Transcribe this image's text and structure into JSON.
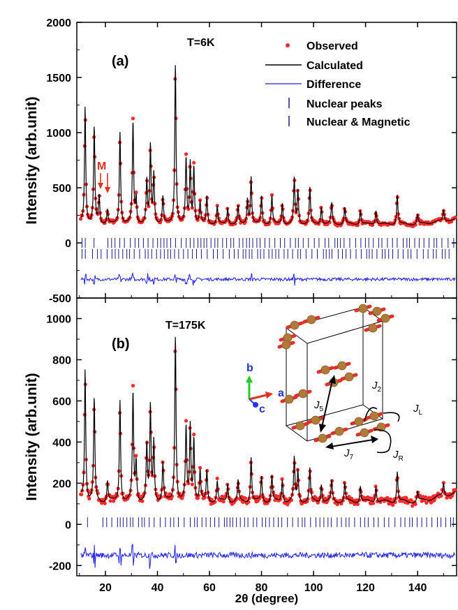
{
  "figure": {
    "xlabel": "2θ (degree)",
    "ylabel_a": "Intensity (arb.unit)",
    "ylabel_b": "Intensity (arb.unit)",
    "colors": {
      "observed": "#ff2a2a",
      "calculated": "#000000",
      "difference": "#1f1fe0",
      "ticks": "#1a1a80",
      "annotation": "#e03020"
    }
  },
  "legend": {
    "observed": "Observed",
    "calculated": "Calculated",
    "difference": "Difference",
    "nuclear": "Nuclear peaks",
    "nuclear_magnetic": "Nuclear & Magnetic"
  },
  "panel_a": {
    "label": "(a)",
    "temp": "T=6K",
    "marker": "M"
  },
  "panel_b": {
    "label": "(b)",
    "temp": "T=175K"
  },
  "inset": {
    "axis_b": "b",
    "axis_a": "a",
    "axis_c": "c",
    "j5": "J",
    "j5_sub": "5",
    "j2": "J",
    "j2_sub": "2",
    "jl": "J",
    "jl_sub": "L",
    "jr": "J",
    "jr_sub": "R",
    "j7": "J",
    "j7_sub": "7"
  },
  "chart_data": [
    {
      "type": "line",
      "panel": "a",
      "title": "",
      "xlabel": "2θ (degree)",
      "ylabel": "Intensity (arb.unit)",
      "xlim": [
        9,
        155
      ],
      "ylim": [
        -500,
        2000
      ],
      "xticks": [
        20,
        40,
        60,
        80,
        100,
        120,
        140
      ],
      "yticks": [
        -500,
        0,
        500,
        1000,
        1500,
        2000
      ],
      "background": 170,
      "difference_offset": -330,
      "tick_rows_y": [
        0,
        -100
      ],
      "peaks": [
        {
          "x": 12.2,
          "y": 1240
        },
        {
          "x": 15.7,
          "y": 1050
        },
        {
          "x": 17.6,
          "y": 420
        },
        {
          "x": 20.8,
          "y": 300
        },
        {
          "x": 25.6,
          "y": 1010
        },
        {
          "x": 30.6,
          "y": 1100
        },
        {
          "x": 31.8,
          "y": 400
        },
        {
          "x": 35.9,
          "y": 560
        },
        {
          "x": 37.3,
          "y": 880
        },
        {
          "x": 38.6,
          "y": 620
        },
        {
          "x": 42.1,
          "y": 420
        },
        {
          "x": 46.9,
          "y": 1640
        },
        {
          "x": 51.0,
          "y": 760
        },
        {
          "x": 52.6,
          "y": 720
        },
        {
          "x": 54.0,
          "y": 690
        },
        {
          "x": 56.4,
          "y": 370
        },
        {
          "x": 59.0,
          "y": 420
        },
        {
          "x": 63.0,
          "y": 330
        },
        {
          "x": 67.0,
          "y": 320
        },
        {
          "x": 71.0,
          "y": 330
        },
        {
          "x": 74.6,
          "y": 400
        },
        {
          "x": 76.0,
          "y": 600
        },
        {
          "x": 80.0,
          "y": 420
        },
        {
          "x": 84.0,
          "y": 430
        },
        {
          "x": 88.0,
          "y": 360
        },
        {
          "x": 92.6,
          "y": 580
        },
        {
          "x": 94.0,
          "y": 470
        },
        {
          "x": 98.6,
          "y": 500
        },
        {
          "x": 103.0,
          "y": 330
        },
        {
          "x": 107.0,
          "y": 360
        },
        {
          "x": 112.0,
          "y": 320
        },
        {
          "x": 118.0,
          "y": 300
        },
        {
          "x": 124.0,
          "y": 300
        },
        {
          "x": 132.2,
          "y": 440
        },
        {
          "x": 140.0,
          "y": 260
        },
        {
          "x": 150.0,
          "y": 270
        }
      ],
      "tick_start": 11,
      "tick_end": 154,
      "tick_step": 1.6
    },
    {
      "type": "line",
      "panel": "b",
      "title": "",
      "xlabel": "2θ (degree)",
      "ylabel": "Intensity (arb.unit)",
      "xlim": [
        9,
        155
      ],
      "ylim": [
        -250,
        1100
      ],
      "xticks": [
        20,
        40,
        60,
        80,
        100,
        120,
        140
      ],
      "yticks": [
        -200,
        0,
        200,
        400,
        600,
        800,
        1000
      ],
      "background": 110,
      "difference_offset": -150,
      "tick_rows_y": [
        10
      ],
      "peaks": [
        {
          "x": 12.2,
          "y": 760
        },
        {
          "x": 15.7,
          "y": 610
        },
        {
          "x": 20.8,
          "y": 210
        },
        {
          "x": 25.6,
          "y": 610
        },
        {
          "x": 30.6,
          "y": 640
        },
        {
          "x": 31.8,
          "y": 300
        },
        {
          "x": 35.9,
          "y": 380
        },
        {
          "x": 37.3,
          "y": 570
        },
        {
          "x": 38.6,
          "y": 400
        },
        {
          "x": 42.1,
          "y": 300
        },
        {
          "x": 46.9,
          "y": 930
        },
        {
          "x": 51.0,
          "y": 470
        },
        {
          "x": 52.6,
          "y": 480
        },
        {
          "x": 54.0,
          "y": 420
        },
        {
          "x": 56.4,
          "y": 260
        },
        {
          "x": 59.0,
          "y": 260
        },
        {
          "x": 63.0,
          "y": 210
        },
        {
          "x": 67.0,
          "y": 200
        },
        {
          "x": 71.0,
          "y": 210
        },
        {
          "x": 76.0,
          "y": 330
        },
        {
          "x": 80.0,
          "y": 230
        },
        {
          "x": 84.0,
          "y": 240
        },
        {
          "x": 88.0,
          "y": 220
        },
        {
          "x": 92.6,
          "y": 320
        },
        {
          "x": 94.0,
          "y": 260
        },
        {
          "x": 98.6,
          "y": 270
        },
        {
          "x": 103.0,
          "y": 200
        },
        {
          "x": 107.0,
          "y": 210
        },
        {
          "x": 112.0,
          "y": 200
        },
        {
          "x": 118.0,
          "y": 190
        },
        {
          "x": 124.0,
          "y": 190
        },
        {
          "x": 132.2,
          "y": 260
        },
        {
          "x": 140.0,
          "y": 160
        },
        {
          "x": 150.0,
          "y": 170
        }
      ],
      "tick_start": 11,
      "tick_end": 154,
      "tick_step": 1.6
    }
  ]
}
